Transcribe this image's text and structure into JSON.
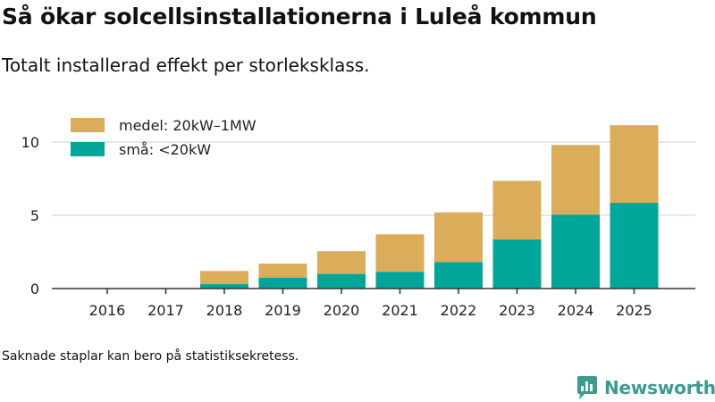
{
  "title": "Så ökar solcellsinstallationerna i Luleå kommun",
  "subtitle": "Totalt installerad effekt per storleksklass.",
  "footnote": "Saknade staplar kan bero på statistiksekretess.",
  "brand": {
    "name": "Newsworthy",
    "icon": "newsworthy-logo-icon"
  },
  "colors": {
    "medel": "#dbac59",
    "sma": "#00a69a",
    "grid": "#dddddd",
    "axis": "#333333",
    "brand": "#3c9b8f"
  },
  "chart_data": {
    "type": "bar",
    "stacked": true,
    "categories": [
      "2016",
      "2017",
      "2018",
      "2019",
      "2020",
      "2021",
      "2022",
      "2023",
      "2024",
      "2025"
    ],
    "series": [
      {
        "name": "små: <20kW",
        "color": "#00a69a",
        "values": [
          0,
          0,
          0.3,
          0.75,
          1.0,
          1.15,
          1.8,
          3.35,
          5.05,
          5.85
        ]
      },
      {
        "name": "medel: 20kW–1MW",
        "color": "#dbac59",
        "values": [
          0,
          0,
          0.9,
          0.95,
          1.55,
          2.55,
          3.4,
          4.0,
          4.75,
          5.3
        ]
      }
    ],
    "legend": [
      "medel: 20kW–1MW",
      "små: <20kW"
    ],
    "legend_position": "top-left",
    "yticks": [
      0,
      5,
      10
    ],
    "ylim": [
      0,
      11.5
    ],
    "xlabel": "",
    "ylabel": "",
    "grid": true
  }
}
